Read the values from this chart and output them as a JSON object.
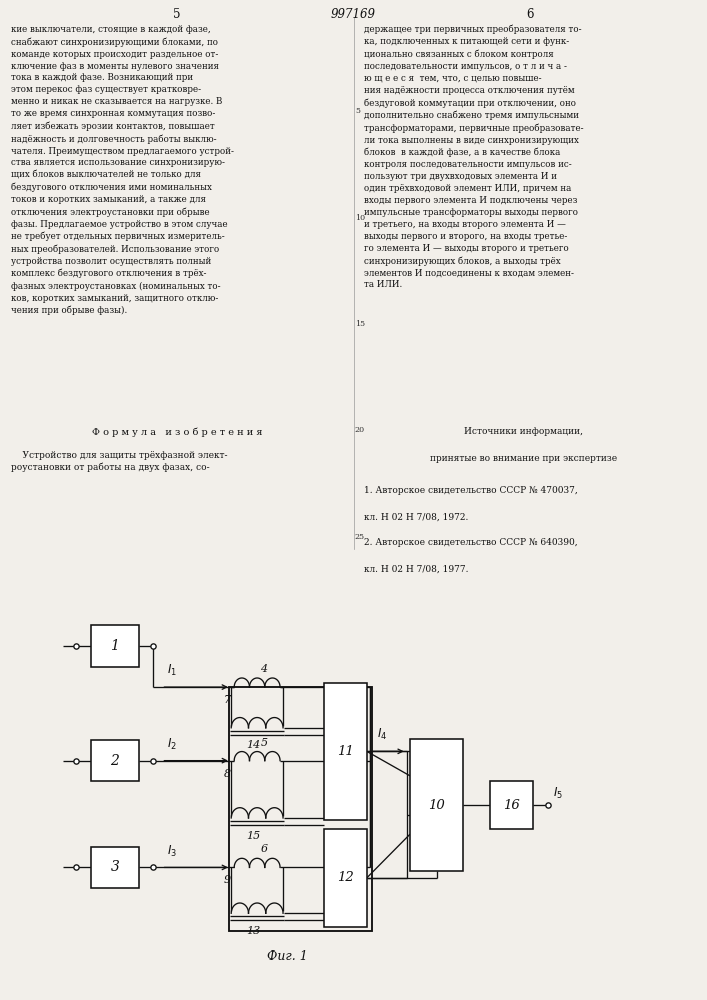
{
  "bg": "#f2efea",
  "lc": "#111111",
  "fs_body": 6.3,
  "fs_label": 8.5,
  "fs_small": 7.5,
  "lsp": 1.42,
  "left_col": "кие выключатели, стоящие в каждой фазе,\nснабжают синхронизирующими блоками, по\nкоманде которых происходит раздельное от-\nключение фаз в моменты нулевого значения\nтока в каждой фазе. Возникающий при\nэтом перекос фаз существует кратковре-\nменно и никак не сказывается на нагрузке. В\nто же время синхронная коммутация позво-\nляет избежать эрозии контактов, повышает\nнадёжность и долговечность работы выклю-\nчателя. Преимуществом предлагаемого устрой-\nства является использование синхронизирую-\nщих блоков выключателей не только для\nбездугового отключения ими номинальных\nтоков и коротких замыканий, а также для\nотключения электроустановки при обрыве\nфазы. Предлагаемое устройство в этом случае\nне требует отдельных первичных измеритель-\nных преобразователей. Использование этого\nустройства позволит осуществлять полный\nкомплекс бездугового отключения в трёх-\nфазных электроустановках (номинальных то-\nков, коротких замыканий, защитного отклю-\nчения при обрыве фазы).",
  "right_col": "держащее три первичных преобразователя то-\nка, подключенных к питающей сети и функ-\nционально связанных с блоком контроля\nпоследовательности импульсов, о т л и ч а -\nю щ е е с я  тем, что, с целью повыше-\nния надёжности процесса отключения путём\nбездуговой коммутации при отключении, оно\nдополнительно снабжено тремя импульсными\nтрансформаторами, первичные преобразовате-\nли тока выполнены в виде синхронизирующих\nблоков  в каждой фазе, а в качестве блока\nконтроля последовательности импульсов ис-\nпользуют три двухвходовых элемента И и\nодин трёхвходовой элемент ИЛИ, причем на\nвходы первого элемента И подключены через\nимпульсные трансформаторы выходы первого\nи третьего, на входы второго элемента И —\nвыходы первого и второго, на входы третье-\nго элемента И — выходы второго и третьего\nсинхронизирующих блоков, а выходы трёх\nэлементов И подсоединены к входам элемен-\nта ИЛИ.",
  "formula_header": "Ф о р м у л а   и з о б р е т е н и я",
  "formula_text": "    Устройство для защиты трёхфазной элект-\nроустановки от работы на двух фазах, со-",
  "sources_header1": "Источники информации,",
  "sources_header2": "принятые во внимание при экспертизе",
  "src1a": "1. Авторское свидетельство СССР № 470037,",
  "src1b": "кл. Н 02 Н 7/08, 1972.",
  "src2a": "2. Авторское свидетельство СССР № 640390,",
  "src2b": "кл. Н 02 Н 7/08, 1977.",
  "page_left": "5",
  "page_right": "6",
  "page_center": "997169",
  "fig_caption": "Фиг. 1"
}
